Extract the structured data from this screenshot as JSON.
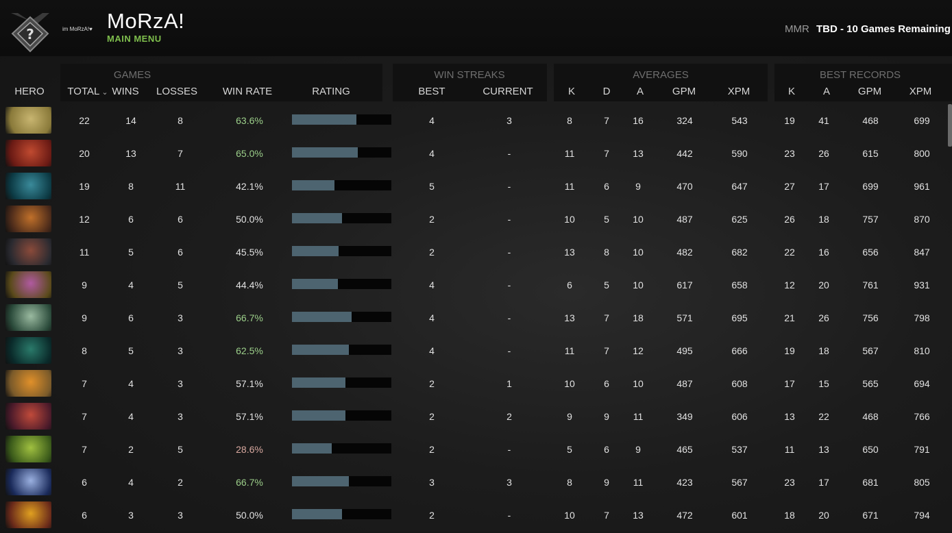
{
  "header": {
    "player_name": "MoRzA!",
    "sub_label": "MAIN MENU",
    "small_tag": "im MoRzA!♥",
    "mmr_label": "MMR",
    "mmr_value": "TBD - 10 Games Remaining"
  },
  "groups": {
    "games": "GAMES",
    "win_streaks": "WIN STREAKS",
    "averages": "AVERAGES",
    "best_records": "BEST RECORDS"
  },
  "columns": {
    "hero": "HERO",
    "total": "TOTAL",
    "wins": "WINS",
    "losses": "LOSSES",
    "win_rate": "WIN RATE",
    "rating": "RATING",
    "best": "BEST",
    "current": "CURRENT",
    "k": "K",
    "d": "D",
    "a": "A",
    "gpm": "GPM",
    "xpm": "XPM",
    "best_k": "K",
    "best_a": "A",
    "best_gpm": "GPM",
    "best_xpm": "XPM"
  },
  "colors": {
    "good": "#9ccf8a",
    "bad": "#d9a9a0",
    "neutral": "#e2e2e2",
    "accent_green": "#7fbf4d",
    "rating_bar": "#4d6470"
  },
  "rows": [
    {
      "portrait": "hero-1-portrait",
      "c1": "#8a7a3a",
      "c2": "#c8b570",
      "total": "22",
      "wins": "14",
      "losses": "8",
      "win_rate": "63.6%",
      "status": "good",
      "rating": 0.65,
      "best": "4",
      "current": "3",
      "k": "8",
      "d": "7",
      "a": "16",
      "gpm": "324",
      "xpm": "543",
      "bk": "19",
      "ba": "41",
      "bgpm": "468",
      "bxpm": "699"
    },
    {
      "portrait": "hero-2-portrait",
      "c1": "#6a1a14",
      "c2": "#c04a30",
      "total": "20",
      "wins": "13",
      "losses": "7",
      "win_rate": "65.0%",
      "status": "good",
      "rating": 0.66,
      "best": "4",
      "current": "-",
      "k": "11",
      "d": "7",
      "a": "13",
      "gpm": "442",
      "xpm": "590",
      "bk": "23",
      "ba": "26",
      "bgpm": "615",
      "bxpm": "800"
    },
    {
      "portrait": "hero-3-portrait",
      "c1": "#0c3a44",
      "c2": "#3a8a9a",
      "total": "19",
      "wins": "8",
      "losses": "11",
      "win_rate": "42.1%",
      "status": "neutral",
      "rating": 0.43,
      "best": "5",
      "current": "-",
      "k": "11",
      "d": "6",
      "a": "9",
      "gpm": "470",
      "xpm": "647",
      "bk": "27",
      "ba": "17",
      "bgpm": "699",
      "bxpm": "961"
    },
    {
      "portrait": "hero-4-portrait",
      "c1": "#4a2a1a",
      "c2": "#c0702a",
      "total": "12",
      "wins": "6",
      "losses": "6",
      "win_rate": "50.0%",
      "status": "neutral",
      "rating": 0.5,
      "best": "2",
      "current": "-",
      "k": "10",
      "d": "5",
      "a": "10",
      "gpm": "487",
      "xpm": "625",
      "bk": "26",
      "ba": "18",
      "bgpm": "757",
      "bxpm": "870"
    },
    {
      "portrait": "hero-5-portrait",
      "c1": "#2a2a30",
      "c2": "#8a4a3a",
      "total": "11",
      "wins": "5",
      "losses": "6",
      "win_rate": "45.5%",
      "status": "neutral",
      "rating": 0.47,
      "best": "2",
      "current": "-",
      "k": "13",
      "d": "8",
      "a": "10",
      "gpm": "482",
      "xpm": "682",
      "bk": "22",
      "ba": "16",
      "bgpm": "656",
      "bxpm": "847"
    },
    {
      "portrait": "hero-6-portrait",
      "c1": "#5a4a1a",
      "c2": "#b05aa0",
      "total": "9",
      "wins": "4",
      "losses": "5",
      "win_rate": "44.4%",
      "status": "neutral",
      "rating": 0.46,
      "best": "4",
      "current": "-",
      "k": "6",
      "d": "5",
      "a": "10",
      "gpm": "617",
      "xpm": "658",
      "bk": "12",
      "ba": "20",
      "bgpm": "761",
      "bxpm": "931"
    },
    {
      "portrait": "hero-7-portrait",
      "c1": "#2a4a3a",
      "c2": "#9abaa0",
      "total": "9",
      "wins": "6",
      "losses": "3",
      "win_rate": "66.7%",
      "status": "good",
      "rating": 0.6,
      "best": "4",
      "current": "-",
      "k": "13",
      "d": "7",
      "a": "18",
      "gpm": "571",
      "xpm": "695",
      "bk": "21",
      "ba": "26",
      "bgpm": "756",
      "bxpm": "798"
    },
    {
      "portrait": "hero-8-portrait",
      "c1": "#0a2a2a",
      "c2": "#2a7a6a",
      "total": "8",
      "wins": "5",
      "losses": "3",
      "win_rate": "62.5%",
      "status": "good",
      "rating": 0.57,
      "best": "4",
      "current": "-",
      "k": "11",
      "d": "7",
      "a": "12",
      "gpm": "495",
      "xpm": "666",
      "bk": "19",
      "ba": "18",
      "bgpm": "567",
      "bxpm": "810"
    },
    {
      "portrait": "hero-9-portrait",
      "c1": "#7a5a2a",
      "c2": "#e0902a",
      "total": "7",
      "wins": "4",
      "losses": "3",
      "win_rate": "57.1%",
      "status": "neutral",
      "rating": 0.54,
      "best": "2",
      "current": "1",
      "k": "10",
      "d": "6",
      "a": "10",
      "gpm": "487",
      "xpm": "608",
      "bk": "17",
      "ba": "15",
      "bgpm": "565",
      "bxpm": "694"
    },
    {
      "portrait": "hero-10-portrait",
      "c1": "#4a1a2a",
      "c2": "#c04a3a",
      "total": "7",
      "wins": "4",
      "losses": "3",
      "win_rate": "57.1%",
      "status": "neutral",
      "rating": 0.54,
      "best": "2",
      "current": "2",
      "k": "9",
      "d": "9",
      "a": "11",
      "gpm": "349",
      "xpm": "606",
      "bk": "13",
      "ba": "22",
      "bgpm": "468",
      "bxpm": "766"
    },
    {
      "portrait": "hero-11-portrait",
      "c1": "#3a5a1a",
      "c2": "#a0c040",
      "total": "7",
      "wins": "2",
      "losses": "5",
      "win_rate": "28.6%",
      "status": "bad",
      "rating": 0.4,
      "best": "2",
      "current": "-",
      "k": "5",
      "d": "6",
      "a": "9",
      "gpm": "465",
      "xpm": "537",
      "bk": "11",
      "ba": "13",
      "bgpm": "650",
      "bxpm": "791"
    },
    {
      "portrait": "hero-12-portrait",
      "c1": "#1a2a5a",
      "c2": "#9ab0e0",
      "total": "6",
      "wins": "4",
      "losses": "2",
      "win_rate": "66.7%",
      "status": "good",
      "rating": 0.57,
      "best": "3",
      "current": "3",
      "k": "8",
      "d": "9",
      "a": "11",
      "gpm": "423",
      "xpm": "567",
      "bk": "23",
      "ba": "17",
      "bgpm": "681",
      "bxpm": "805"
    },
    {
      "portrait": "hero-13-portrait",
      "c1": "#6a2a1a",
      "c2": "#e0a020",
      "total": "6",
      "wins": "3",
      "losses": "3",
      "win_rate": "50.0%",
      "status": "neutral",
      "rating": 0.5,
      "best": "2",
      "current": "-",
      "k": "10",
      "d": "7",
      "a": "13",
      "gpm": "472",
      "xpm": "601",
      "bk": "18",
      "ba": "20",
      "bgpm": "671",
      "bxpm": "794"
    }
  ]
}
